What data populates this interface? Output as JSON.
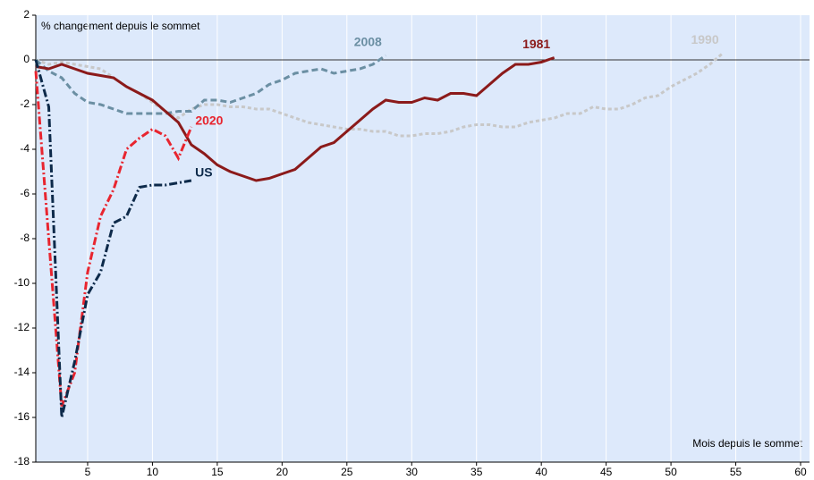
{
  "chart_data": {
    "type": "line",
    "y_label": "% changement depuis le sommet",
    "x_label": "Mois depuis le sommet",
    "x": [
      1,
      2,
      3,
      4,
      5,
      6,
      7,
      8,
      9,
      10,
      11,
      12,
      13,
      14,
      15,
      16,
      17,
      18,
      19,
      20,
      21,
      22,
      23,
      24,
      25,
      26,
      27,
      28,
      29,
      30,
      31,
      32,
      33,
      34,
      35,
      36,
      37,
      38,
      39,
      40,
      41,
      42,
      43,
      44,
      45,
      46,
      47,
      48,
      49,
      50,
      51,
      52,
      53,
      54
    ],
    "series": [
      {
        "name": "1990",
        "color": "#c8c8c8",
        "dash": "dotted",
        "values": [
          0,
          -0.2,
          -0.1,
          -0.2,
          -0.3,
          -0.4,
          -0.8,
          -1.2,
          -1.5,
          -1.9,
          -2.3,
          -2.6,
          -2.2,
          -2.0,
          -2.0,
          -2.1,
          -2.1,
          -2.2,
          -2.2,
          -2.4,
          -2.6,
          -2.8,
          -2.9,
          -3.0,
          -3.1,
          -3.1,
          -3.2,
          -3.2,
          -3.4,
          -3.4,
          -3.3,
          -3.3,
          -3.2,
          -3.0,
          -2.9,
          -2.9,
          -3.0,
          -3.0,
          -2.8,
          -2.7,
          -2.6,
          -2.4,
          -2.4,
          -2.1,
          -2.2,
          -2.2,
          -2.0,
          -1.7,
          -1.6,
          -1.2,
          -0.9,
          -0.6,
          -0.2,
          0.3
        ]
      },
      {
        "name": "2008",
        "color": "#6b8fa3",
        "dash": "dashed",
        "values": [
          0,
          -0.5,
          -0.8,
          -1.5,
          -1.9,
          -2.0,
          -2.2,
          -2.4,
          -2.4,
          -2.4,
          -2.4,
          -2.3,
          -2.3,
          -1.8,
          -1.8,
          -1.9,
          -1.7,
          -1.5,
          -1.1,
          -0.9,
          -0.6,
          -0.5,
          -0.4,
          -0.6,
          -0.5,
          -0.4,
          -0.2,
          0.2,
          null,
          null,
          null,
          null,
          null,
          null,
          null,
          null,
          null,
          null,
          null,
          null,
          null,
          null,
          null,
          null,
          null,
          null,
          null,
          null,
          null,
          null,
          null,
          null,
          null,
          null
        ]
      },
      {
        "name": "1981",
        "color": "#8b1a1a",
        "dash": "solid",
        "values": [
          -0.3,
          -0.4,
          -0.2,
          -0.4,
          -0.6,
          -0.7,
          -0.8,
          -1.2,
          -1.5,
          -1.8,
          -2.3,
          -2.8,
          -3.8,
          -4.2,
          -4.7,
          -5.0,
          -5.2,
          -5.4,
          -5.3,
          -5.1,
          -4.9,
          -4.4,
          -3.9,
          -3.7,
          -3.2,
          -2.7,
          -2.2,
          -1.8,
          -1.9,
          -1.9,
          -1.7,
          -1.8,
          -1.5,
          -1.5,
          -1.6,
          -1.1,
          -0.6,
          -0.2,
          -0.2,
          -0.1,
          0.1,
          null,
          null,
          null,
          null,
          null,
          null,
          null,
          null,
          null,
          null,
          null,
          null,
          null
        ]
      },
      {
        "name": "2020",
        "color": "#e8252f",
        "dash": "dashdot",
        "values": [
          -0.5,
          -8,
          -15.5,
          -14,
          -9.5,
          -7,
          -5.8,
          -4,
          -3.5,
          -3.1,
          -3.4,
          -4.4,
          -3.0,
          null,
          null,
          null,
          null,
          null,
          null,
          null,
          null,
          null,
          null,
          null,
          null,
          null,
          null,
          null,
          null,
          null,
          null,
          null,
          null,
          null,
          null,
          null,
          null,
          null,
          null,
          null,
          null,
          null,
          null,
          null,
          null,
          null,
          null,
          null,
          null,
          null,
          null,
          null,
          null,
          null
        ]
      },
      {
        "name": "US",
        "color": "#0d2a4a",
        "dash": "dashdot",
        "values": [
          0,
          -2.1,
          -16,
          -13.5,
          -10.5,
          -9.5,
          -7.3,
          -7,
          -5.7,
          -5.6,
          -5.6,
          -5.5,
          -5.4,
          null,
          null,
          null,
          null,
          null,
          null,
          null,
          null,
          null,
          null,
          null,
          null,
          null,
          null,
          null,
          null,
          null,
          null,
          null,
          null,
          null,
          null,
          null,
          null,
          null,
          null,
          null,
          null,
          null,
          null,
          null,
          null,
          null,
          null,
          null,
          null,
          null,
          null,
          null,
          null,
          null
        ]
      }
    ],
    "xlim": [
      1,
      60
    ],
    "ylim": [
      -18,
      2
    ],
    "xticks": [
      5,
      10,
      15,
      20,
      25,
      30,
      35,
      40,
      45,
      50,
      55,
      60
    ],
    "yticks": [
      2,
      0,
      -2,
      -4,
      -6,
      -8,
      -10,
      -12,
      -14,
      -16,
      -18
    ],
    "grid": true
  }
}
